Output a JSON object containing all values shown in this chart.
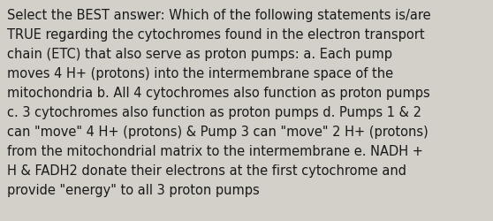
{
  "background_color": "#d3cfc9",
  "text_color": "#1a1a1a",
  "font_size": 10.5,
  "font_family": "DejaVu Sans",
  "lines": [
    "Select the BEST answer: Which of the following statements is/are",
    "TRUE regarding the cytochromes found in the electron transport",
    "chain (ETC) that also serve as proton pumps: a. Each pump",
    "moves 4 H+ (protons) into the intermembrane space of the",
    "mitochondria b. All 4 cytochromes also function as proton pumps",
    "c. 3 cytochromes also function as proton pumps d. Pumps 1 & 2",
    "can \"move\" 4 H+ (protons) & Pump 3 can \"move\" 2 H+ (protons)",
    "from the mitochondrial matrix to the intermembrane e. NADH +",
    "H & FADH2 donate their electrons at the first cytochrome and",
    "provide \"energy\" to all 3 proton pumps"
  ]
}
